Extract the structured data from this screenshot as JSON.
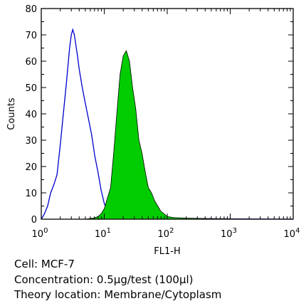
{
  "chart_data": {
    "type": "area",
    "title": "",
    "xlabel": "FL1-H",
    "ylabel": "Counts",
    "x_scale": "log",
    "xlim": [
      1,
      10000
    ],
    "ylim": [
      0,
      80
    ],
    "x_ticks": [
      {
        "base": "10",
        "exp": "0"
      },
      {
        "base": "10",
        "exp": "1"
      },
      {
        "base": "10",
        "exp": "2"
      },
      {
        "base": "10",
        "exp": "3"
      },
      {
        "base": "10",
        "exp": "4"
      }
    ],
    "y_ticks": [
      "0",
      "10",
      "20",
      "30",
      "40",
      "50",
      "60",
      "70",
      "80"
    ],
    "grid": false,
    "series": [
      {
        "color": "#0000cc",
        "style": "outline",
        "x": [
          1,
          1.12,
          1.26,
          1.41,
          1.58,
          1.78,
          2.0,
          2.24,
          2.51,
          2.82,
          3.0,
          3.16,
          3.35,
          3.55,
          3.76,
          4.0,
          4.47,
          5.01,
          5.62,
          6.31,
          7.08,
          7.94,
          8.91,
          10.0,
          11.2,
          12.6,
          14.1,
          15.8,
          20,
          30,
          50,
          100,
          300,
          1000,
          10000
        ],
        "y": [
          0,
          2,
          5,
          10,
          13,
          17,
          28,
          40,
          52,
          65,
          70,
          72,
          70,
          66,
          62,
          57,
          50,
          44,
          38,
          32,
          24,
          18,
          11,
          6,
          3,
          1.5,
          1,
          0.5,
          0.5,
          0.5,
          0.3,
          0.3,
          0.2,
          0.1,
          0
        ]
      },
      {
        "color": "#00cc00",
        "style": "filled",
        "x": [
          1,
          5,
          7.08,
          7.94,
          8.91,
          10.0,
          11.2,
          12.6,
          14.1,
          15.8,
          17.8,
          20.0,
          22.4,
          25.1,
          28.2,
          31.6,
          35.5,
          39.8,
          44.7,
          50.1,
          56.2,
          63.1,
          70.8,
          79.4,
          89.1,
          100,
          126,
          200,
          500,
          1000,
          10000
        ],
        "y": [
          0,
          0,
          0.5,
          1,
          2,
          4,
          8,
          12,
          25,
          40,
          55,
          62,
          64,
          60,
          50,
          42,
          30,
          25,
          18,
          12,
          10,
          7,
          5,
          3,
          2,
          1,
          0.6,
          0.4,
          0.2,
          0.1,
          0
        ]
      }
    ]
  },
  "captions": {
    "cell": "Cell: MCF-7",
    "concentration": "Concentration: 0.5μg/test (100μl)",
    "theory": "Theory location: Membrane/Cytoplasm"
  }
}
